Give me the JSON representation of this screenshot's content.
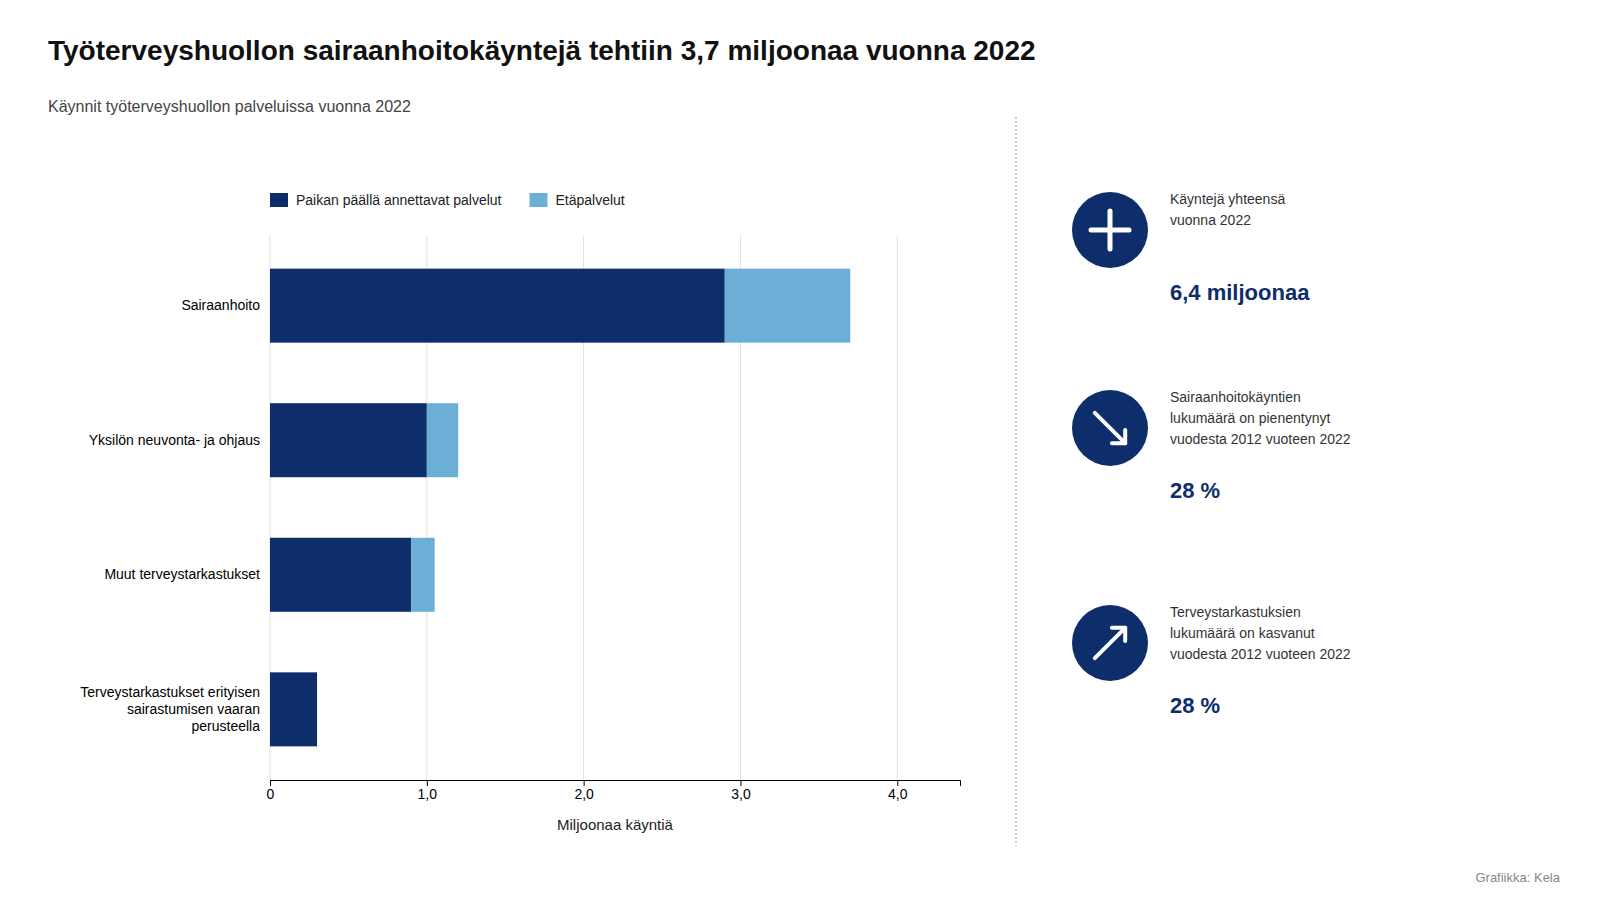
{
  "chart_data": {
    "type": "bar",
    "orientation": "horizontal",
    "stacked": true,
    "title": "Työterveyshuollon sairaanhoitokäyntejä tehtiin 3,7 miljoonaa vuonna 2022",
    "subtitle": "Käynnit työterveyshuollon palveluissa vuonna 2022",
    "categories": [
      "Sairaanhoito",
      "Yksilön neuvonta- ja ohjaus",
      "Muut terveystarkastukset",
      "Terveystarkastukset erityisen\nsairastumisen vaaran\nperusteella"
    ],
    "series": [
      {
        "name": "Paikan päällä annettavat palvelut",
        "color": "#0d2d6b",
        "values": [
          2.9,
          1.0,
          0.9,
          0.3
        ]
      },
      {
        "name": "Etäpalvelut",
        "color": "#6baed6",
        "values": [
          0.8,
          0.2,
          0.15,
          0.0
        ]
      }
    ],
    "xlabel": "Miljoonaa käyntiä",
    "xlim": [
      0,
      4.4
    ],
    "xticks": [
      0,
      {
        "value": 1.0,
        "label": "1,0"
      },
      {
        "value": 2.0,
        "label": "2,0"
      },
      {
        "value": 3.0,
        "label": "3,0"
      },
      {
        "value": 4.0,
        "label": "4,0"
      }
    ],
    "grid": true,
    "legend": "top-left",
    "annotations": [
      {
        "text": "Käyntejä yhteensä\nvuonna 2022",
        "label": "6,4 miljoonaa"
      },
      {
        "text": "Sairaanhoitokäyntien\nlukumäärä on pienentynyt\nvuodesta 2012 vuoteen 2022",
        "label": "28 %"
      },
      {
        "text": "Terveystarkastuksien\nlukumäärä on kasvanut\nvuodesta 2012 vuoteen 2022",
        "label": "28 %"
      }
    ],
    "source": "Grafiikka: Kela"
  }
}
